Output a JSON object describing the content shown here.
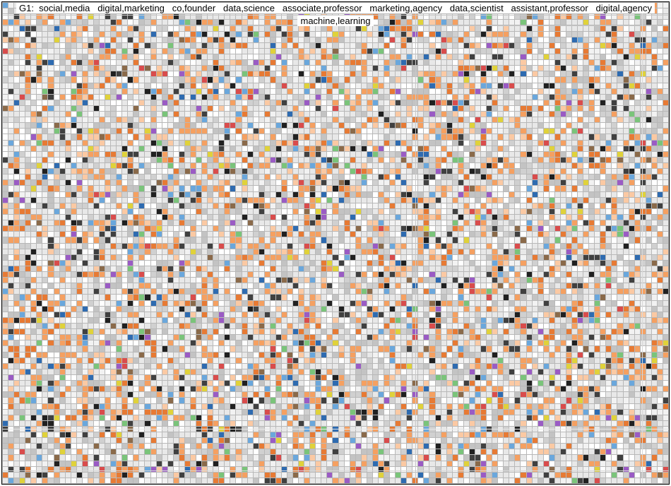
{
  "title_line1": "G1:  social,media   digital,marketing   co,founder   data,science   associate,professor   marketing,agency   data,scientist   assistant,professor   digital,agency",
  "title_line2": "machine,learning",
  "grid": {
    "cols": 117,
    "rows": 84,
    "background_color": "#b8b8b8",
    "palette_weights": [
      {
        "color": "#e8e8e8",
        "weight": 26
      },
      {
        "color": "#f2f2f2",
        "weight": 12
      },
      {
        "color": "#ffffff",
        "weight": 10
      },
      {
        "color": "#d0d0d0",
        "weight": 8
      },
      {
        "color": "#f5a061",
        "weight": 10
      },
      {
        "color": "#e77a34",
        "weight": 5
      },
      {
        "color": "#fbc9a3",
        "weight": 4
      },
      {
        "color": "#404040",
        "weight": 3
      },
      {
        "color": "#202020",
        "weight": 2
      },
      {
        "color": "#6aa7dc",
        "weight": 2
      },
      {
        "color": "#2e6bb0",
        "weight": 1
      },
      {
        "color": "#7ac47a",
        "weight": 1
      },
      {
        "color": "#d94c4c",
        "weight": 1
      },
      {
        "color": "#e0d23a",
        "weight": 1
      },
      {
        "color": "#9a5bc4",
        "weight": 1
      },
      {
        "color": "#8a6a4a",
        "weight": 1
      },
      {
        "color": "#c3c3c3",
        "weight": 8
      }
    ],
    "seed": 2021839271
  },
  "overlay_lines": [
    {
      "orientation": "horizontal",
      "position_pct": 2.6,
      "thickness": 1,
      "color": "#c8c8c8"
    },
    {
      "orientation": "horizontal",
      "position_pct": 4.8,
      "thickness": 1,
      "color": "#c8c8c8"
    },
    {
      "orientation": "horizontal",
      "position_pct": 88.5,
      "thickness": 1,
      "color": "#e8e8e8"
    },
    {
      "orientation": "horizontal",
      "position_pct": 97.2,
      "thickness": 1,
      "color": "#d8d8d8"
    },
    {
      "orientation": "vertical",
      "position_pct": 62.0,
      "thickness": 1,
      "color": "#c8c8c8"
    },
    {
      "orientation": "vertical",
      "position_pct": 96.0,
      "thickness": 1,
      "color": "#d8d8d8"
    }
  ],
  "border_color": "#000000"
}
